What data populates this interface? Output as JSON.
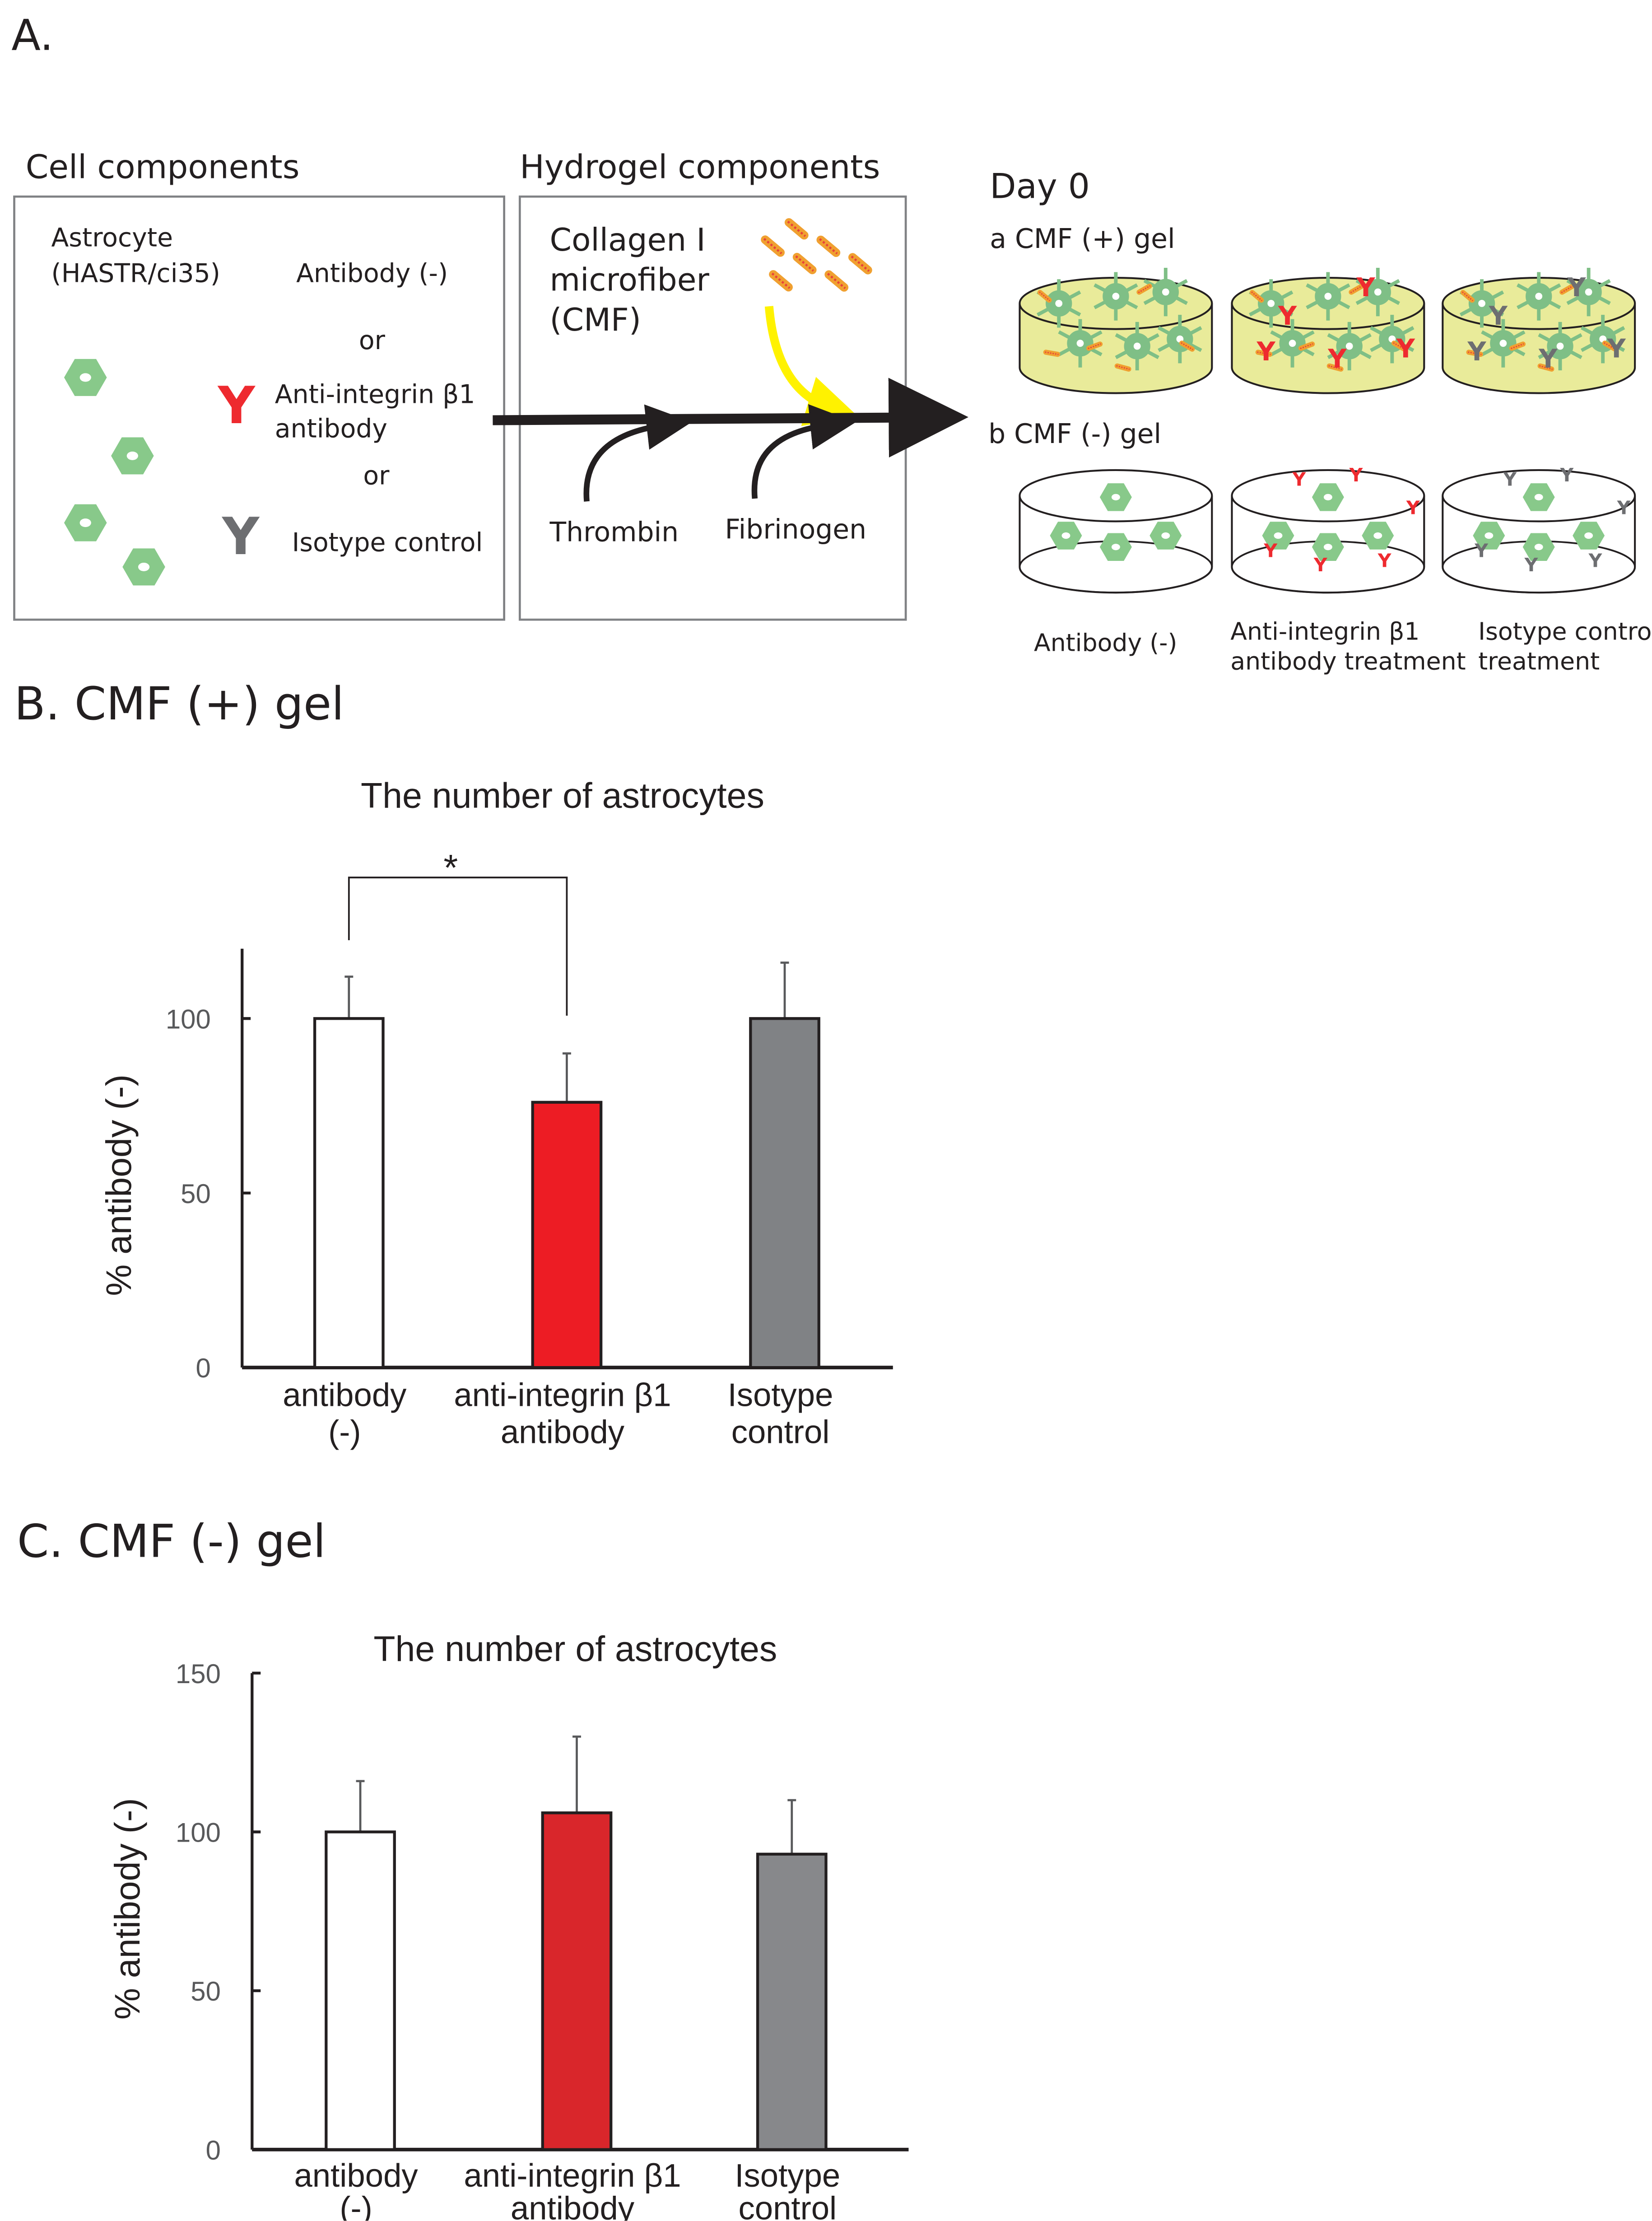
{
  "panel_a": {
    "label": "A.",
    "cell_components": {
      "heading": "Cell components",
      "astrocyte": [
        "Astrocyte",
        "(HASTR/ci35)"
      ],
      "antibody_neg": "Antibody (-)",
      "or1": "or",
      "anti_integrin": [
        "Anti-integrin β1",
        "antibody"
      ],
      "or2": "or",
      "isotype": "Isotype control",
      "y_glyph": "Y"
    },
    "hydrogel_components": {
      "heading": "Hydrogel components",
      "cmf": [
        "Collagen I",
        "microfiber",
        "(CMF)"
      ],
      "thrombin": "Thrombin",
      "fibrinogen": "Fibrinogen"
    },
    "day0": {
      "heading": "Day 0",
      "a_label": "a  CMF (+) gel",
      "b_label": "b CMF (-) gel",
      "captions": [
        [
          "Antibody (-)"
        ],
        [
          "Anti-integrin β1",
          "antibody treatment"
        ],
        [
          "Isotype control",
          "treatment"
        ]
      ]
    },
    "colors": {
      "cell": "#88c98a",
      "anti_integrin": "#ee2a2f",
      "isotype": "#6d6e71",
      "gel": "#e9eb9a",
      "fiber": "#f0a030",
      "arrow_yellow": "#fff200"
    }
  },
  "panel_b_label": "B. CMF (+) gel",
  "panel_c_label": "C. CMF (-) gel",
  "chart_data": [
    {
      "type": "bar",
      "title": "The number of astrocytes",
      "ylabel": "% antibody (-)",
      "xlabel": "",
      "categories": [
        [
          "antibody",
          "(-)"
        ],
        [
          "anti-integrin β1",
          "antibody"
        ],
        [
          "Isotype",
          "control"
        ]
      ],
      "values": [
        100,
        76,
        100
      ],
      "error_upper": [
        112,
        90,
        116
      ],
      "colors": [
        "#ffffff",
        "#ed1c24",
        "#808285"
      ],
      "yticks": [
        0,
        50,
        100
      ],
      "ylim": [
        0,
        120
      ],
      "grid": false,
      "significance": {
        "pair": [
          0,
          1
        ],
        "label": "*"
      }
    },
    {
      "type": "bar",
      "title": "The number of astrocytes",
      "ylabel": "% antibody (-)",
      "xlabel": "",
      "categories": [
        [
          "antibody",
          "(-)"
        ],
        [
          "anti-integrin β1",
          "antibody"
        ],
        [
          "Isotype",
          "control"
        ]
      ],
      "values": [
        100,
        106,
        93
      ],
      "error_upper": [
        116,
        130,
        110
      ],
      "colors": [
        "#ffffff",
        "#d9262b",
        "#87888b"
      ],
      "yticks": [
        0,
        50,
        100,
        150
      ],
      "ylim": [
        0,
        150
      ],
      "grid": false
    }
  ]
}
